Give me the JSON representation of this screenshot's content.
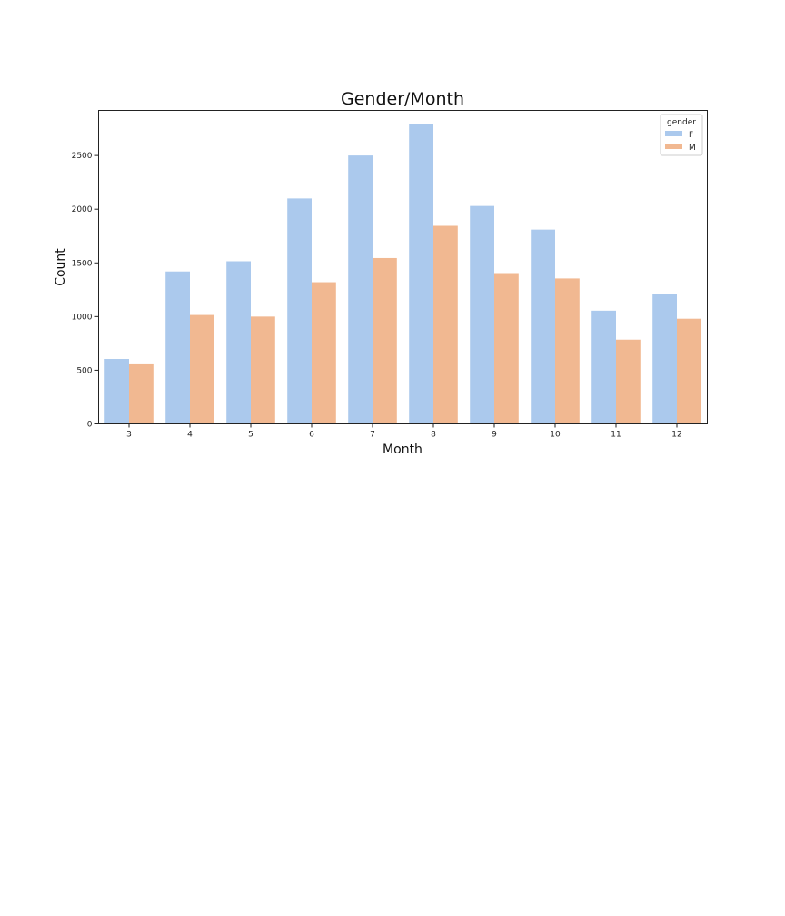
{
  "chart_data": {
    "type": "bar",
    "title": "Gender/Month",
    "xlabel": "Month",
    "ylabel": "Count",
    "categories": [
      "3",
      "4",
      "5",
      "6",
      "7",
      "8",
      "9",
      "10",
      "11",
      "12"
    ],
    "series": [
      {
        "name": "F",
        "color": "#abc9ed",
        "values": [
          605,
          1420,
          1515,
          2100,
          2500,
          2790,
          2030,
          1810,
          1055,
          1210
        ]
      },
      {
        "name": "M",
        "color": "#f1b891",
        "values": [
          555,
          1015,
          1000,
          1320,
          1545,
          1845,
          1405,
          1355,
          785,
          980
        ]
      }
    ],
    "ylim": [
      0,
      2920
    ],
    "yticks": [
      0,
      500,
      1000,
      1500,
      2000,
      2500
    ],
    "grid": false,
    "legend": {
      "title": "gender",
      "placement": "top-right"
    }
  }
}
